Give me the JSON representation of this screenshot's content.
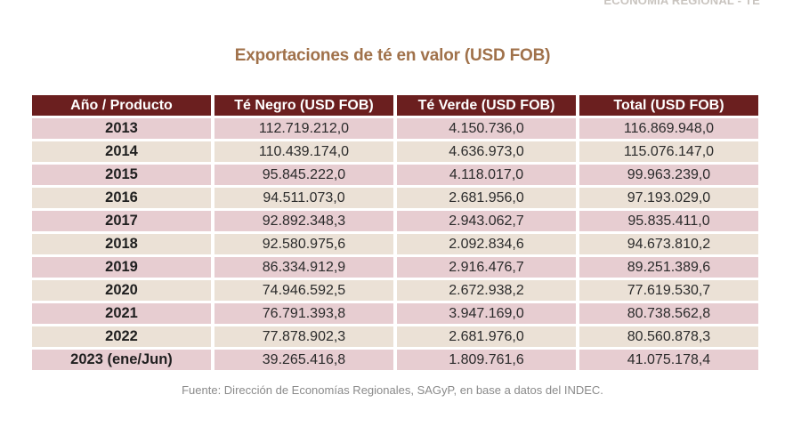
{
  "header_tag": "ECONOMÍA REGIONAL - TÉ",
  "title": "Exportaciones de té en valor (USD FOB)",
  "table": {
    "headers": [
      "Año / Producto",
      "Té Negro (USD FOB)",
      "Té Verde (USD FOB)",
      "Total (USD FOB)"
    ],
    "rows": [
      [
        "2013",
        "112.719.212,0",
        "4.150.736,0",
        "116.869.948,0"
      ],
      [
        "2014",
        "110.439.174,0",
        "4.636.973,0",
        "115.076.147,0"
      ],
      [
        "2015",
        "95.845.222,0",
        "4.118.017,0",
        "99.963.239,0"
      ],
      [
        "2016",
        "94.511.073,0",
        "2.681.956,0",
        "97.193.029,0"
      ],
      [
        "2017",
        "92.892.348,3",
        "2.943.062,7",
        "95.835.411,0"
      ],
      [
        "2018",
        "92.580.975,6",
        "2.092.834,6",
        "94.673.810,2"
      ],
      [
        "2019",
        "86.334.912,9",
        "2.916.476,7",
        "89.251.389,6"
      ],
      [
        "2020",
        "74.946.592,5",
        "2.672.938,2",
        "77.619.530,7"
      ],
      [
        "2021",
        "76.791.393,8",
        "3.947.169,0",
        "80.738.562,8"
      ],
      [
        "2022",
        "77.878.902,3",
        "2.681.976,0",
        "80.560.878,3"
      ],
      [
        "2023 (ene/Jun)",
        "39.265.416,8",
        "1.809.761,6",
        "41.075.178,4"
      ]
    ]
  },
  "source": "Fuente: Dirección de Economías Regionales, SAGyP, en base a datos del INDEC.",
  "colors": {
    "header_bg": "#6b1f1f",
    "title": "#a0714a",
    "row_odd": "#e7cdd1",
    "row_even": "#ebe1d6"
  }
}
